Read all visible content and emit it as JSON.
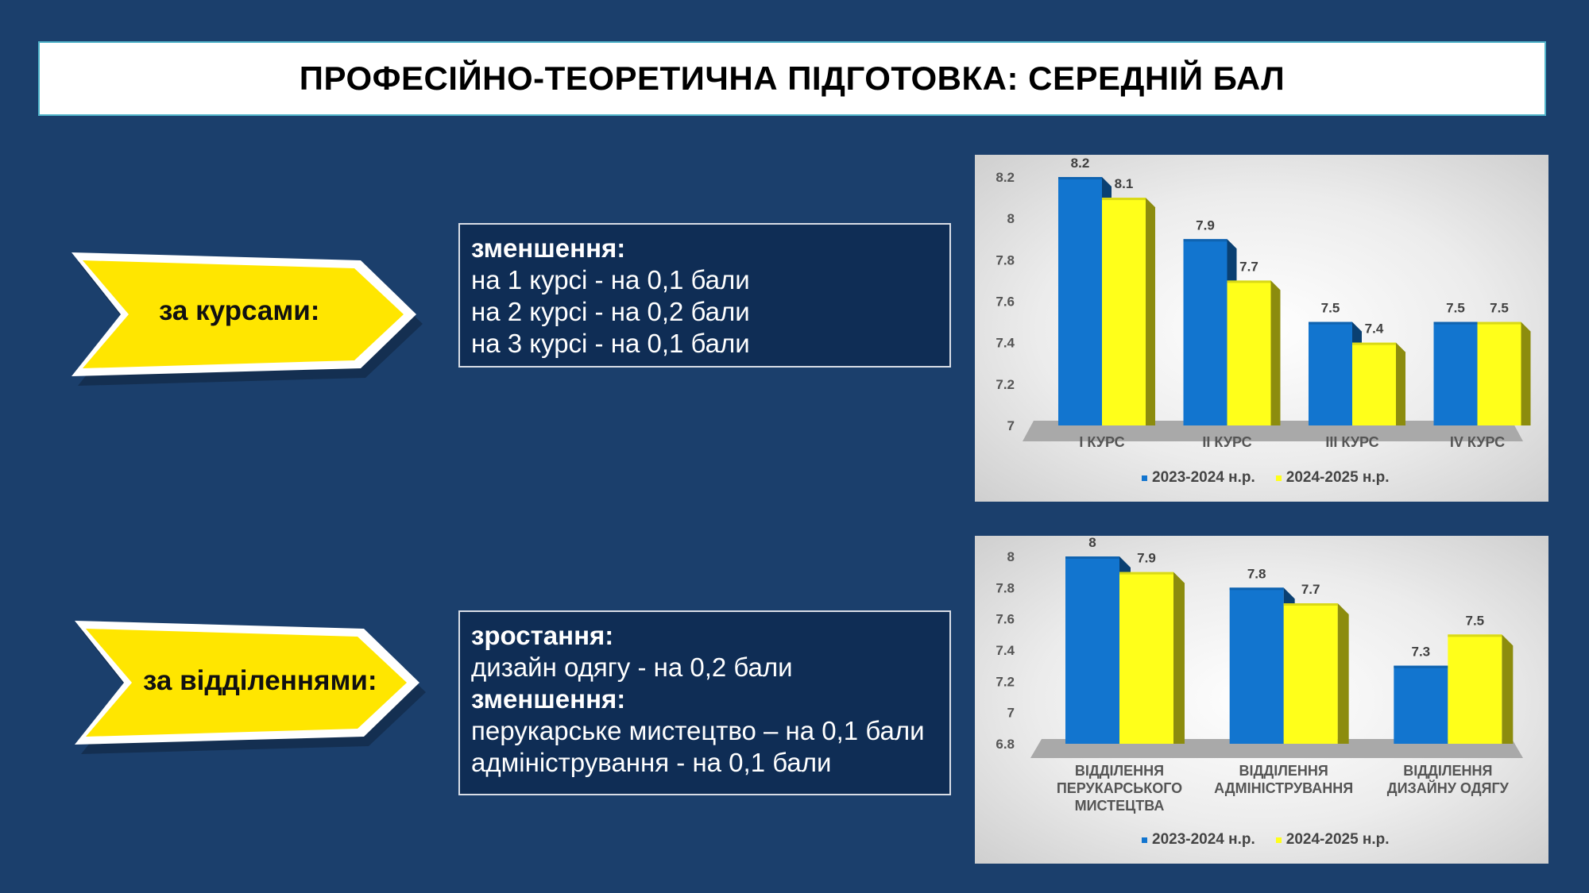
{
  "title": "ПРОФЕСІЙНО-ТЕОРЕТИЧНА ПІДГОТОВКА: СЕРЕДНІЙ БАЛ",
  "colors": {
    "background": "#1b3f6c",
    "arrow_fill": "#ffe600",
    "info_box": "#0f2d55",
    "series_2023": "#1275cf",
    "series_2024": "#ffff1a"
  },
  "section_courses": {
    "arrow_label": "за курсами:",
    "lines": [
      {
        "text": "зменшення:",
        "bold": true
      },
      {
        "text": "на 1 курсі - на 0,1 бали",
        "bold": false
      },
      {
        "text": "на 2 курсі - на 0,2 бали",
        "bold": false
      },
      {
        "text": "на 3 курсі - на 0,1 бали",
        "bold": false
      }
    ]
  },
  "section_departments": {
    "arrow_label": "за відділеннями:",
    "lines": [
      {
        "text": "зростання:",
        "bold": true
      },
      {
        "text": "дизайн одягу -  на 0,2 бали",
        "bold": false
      },
      {
        "text": "зменшення:",
        "bold": true
      },
      {
        "text": "перукарське мистецтво – на 0,1 бали",
        "bold": false
      },
      {
        "text": "адміністрування - на 0,1 бали",
        "bold": false
      }
    ]
  },
  "chart_data": [
    {
      "type": "bar",
      "categories": [
        [
          "I КУРС"
        ],
        [
          "II КУРС"
        ],
        [
          "III КУРС"
        ],
        [
          "IV КУРС"
        ]
      ],
      "series": [
        {
          "name": "2023-2024 н.р.",
          "values": [
            8.2,
            7.9,
            7.5,
            7.5
          ],
          "labels": [
            "8.2",
            "7.9",
            "7.5",
            "7.5"
          ]
        },
        {
          "name": "2024-2025 н.р.",
          "values": [
            8.1,
            7.7,
            7.4,
            7.5
          ],
          "labels": [
            "8.1",
            "7.7",
            "7.4",
            "7.5"
          ]
        }
      ],
      "ylim": [
        7,
        8.2
      ],
      "yticks": [
        "7",
        "7.2",
        "7.4",
        "7.6",
        "7.8",
        "8",
        "8.2"
      ],
      "ytick_values": [
        7,
        7.2,
        7.4,
        7.6,
        7.8,
        8,
        8.2
      ],
      "legend_position": "bottom",
      "grid": false
    },
    {
      "type": "bar",
      "categories": [
        [
          "ВІДДІЛЕННЯ",
          "ПЕРУКАРСЬКОГО",
          "МИСТЕЦТВА"
        ],
        [
          "ВІДДІЛЕННЯ",
          "АДМІНІСТРУВАННЯ"
        ],
        [
          "ВІДДІЛЕННЯ",
          "ДИЗАЙНУ ОДЯГУ"
        ]
      ],
      "series": [
        {
          "name": "2023-2024 н.р.",
          "values": [
            8,
            7.8,
            7.3
          ],
          "labels": [
            "8",
            "7.8",
            "7.3"
          ]
        },
        {
          "name": "2024-2025 н.р.",
          "values": [
            7.9,
            7.7,
            7.5
          ],
          "labels": [
            "7.9",
            "7.7",
            "7.5"
          ]
        }
      ],
      "ylim": [
        6.8,
        8
      ],
      "yticks": [
        "6.8",
        "7",
        "7.2",
        "7.4",
        "7.6",
        "7.8",
        "8"
      ],
      "ytick_values": [
        6.8,
        7,
        7.2,
        7.4,
        7.6,
        7.8,
        8
      ],
      "legend_position": "bottom",
      "grid": false
    }
  ]
}
